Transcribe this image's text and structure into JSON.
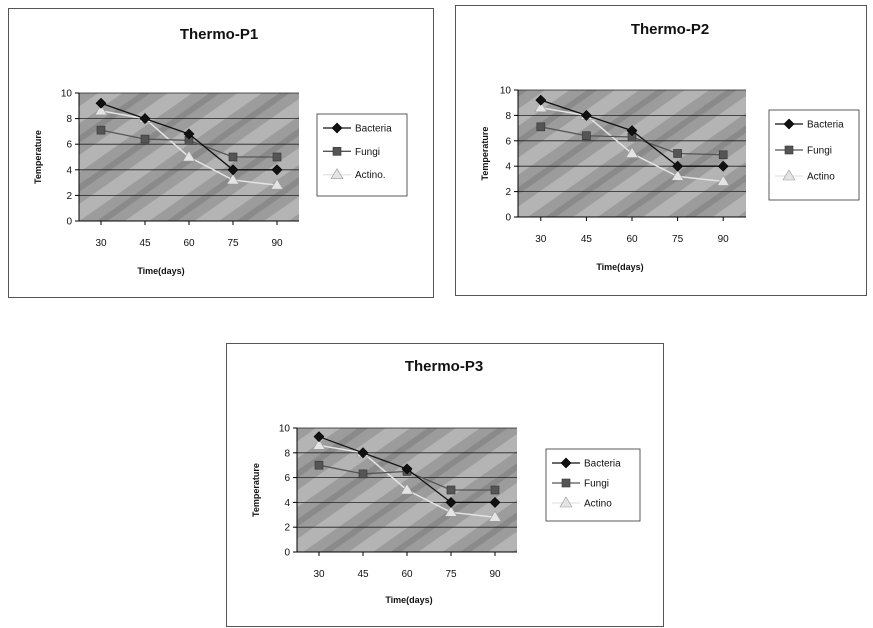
{
  "colors": {
    "bacteria": "#111111",
    "fungi": "#555555",
    "actino": "#e4e4e4",
    "plot_bg": "#9c9c9c",
    "grid": "#222222"
  },
  "chart_data": [
    {
      "type": "line",
      "title": "Thermo-P1",
      "xlabel": "Time(days)",
      "ylabel": "Temperature",
      "x": [
        30,
        45,
        60,
        75,
        90
      ],
      "ylim": [
        0,
        10
      ],
      "yticks": [
        0,
        2,
        4,
        6,
        8,
        10
      ],
      "grid": true,
      "legend_position": "right",
      "series": [
        {
          "name": "Bacteria",
          "values": [
            9.2,
            8.0,
            6.8,
            4.0,
            4.0
          ],
          "marker": "diamond",
          "color": "#111111"
        },
        {
          "name": "Fungi",
          "values": [
            7.1,
            6.4,
            6.3,
            5.0,
            5.0
          ],
          "marker": "square",
          "color": "#555555"
        },
        {
          "name": "Actino.",
          "values": [
            8.6,
            8.0,
            5.0,
            3.2,
            2.8
          ],
          "marker": "triangle",
          "color": "#e4e4e4"
        }
      ]
    },
    {
      "type": "line",
      "title": "Thermo-P2",
      "xlabel": "Time(days)",
      "ylabel": "Temperature",
      "x": [
        30,
        45,
        60,
        75,
        90
      ],
      "ylim": [
        0,
        10
      ],
      "yticks": [
        0,
        2,
        4,
        6,
        8,
        10
      ],
      "grid": true,
      "legend_position": "right",
      "series": [
        {
          "name": "Bacteria",
          "values": [
            9.2,
            8.0,
            6.8,
            4.0,
            4.0
          ],
          "marker": "diamond",
          "color": "#111111"
        },
        {
          "name": "Fungi",
          "values": [
            7.1,
            6.4,
            6.3,
            5.0,
            4.9
          ],
          "marker": "square",
          "color": "#555555"
        },
        {
          "name": "Actino",
          "values": [
            8.6,
            8.0,
            5.0,
            3.2,
            2.8
          ],
          "marker": "triangle",
          "color": "#e4e4e4"
        }
      ]
    },
    {
      "type": "line",
      "title": "Thermo-P3",
      "xlabel": "Time(days)",
      "ylabel": "Temperature",
      "x": [
        30,
        45,
        60,
        75,
        90
      ],
      "ylim": [
        0,
        10
      ],
      "yticks": [
        0,
        2,
        4,
        6,
        8,
        10
      ],
      "grid": true,
      "legend_position": "right",
      "series": [
        {
          "name": "Bacteria",
          "values": [
            9.3,
            8.0,
            6.7,
            4.0,
            4.0
          ],
          "marker": "diamond",
          "color": "#111111"
        },
        {
          "name": "Fungi",
          "values": [
            7.0,
            6.3,
            6.5,
            5.0,
            5.0
          ],
          "marker": "square",
          "color": "#555555"
        },
        {
          "name": "Actino",
          "values": [
            8.6,
            8.0,
            5.0,
            3.2,
            2.8
          ],
          "marker": "triangle",
          "color": "#e4e4e4"
        }
      ]
    }
  ]
}
